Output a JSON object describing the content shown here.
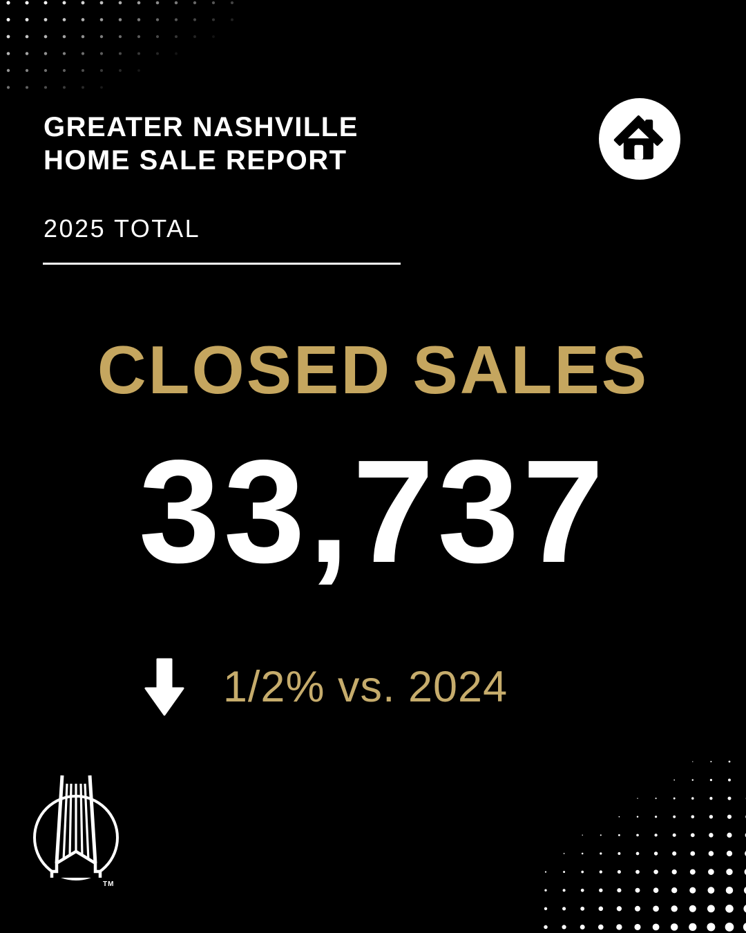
{
  "poster": {
    "background": "#000000"
  },
  "colors": {
    "gold": "#C5A65F",
    "gold-soft": "#C6AC6C",
    "white": "#FFFFFF",
    "icon-black": "#000000"
  },
  "header": {
    "title_line1": "GREATER NASHVILLE",
    "title_line2": "HOME SALE REPORT",
    "subtitle": "2025 TOTAL",
    "badge_icon": "home-icon"
  },
  "metric": {
    "label": "CLOSED SALES",
    "value": "33,737",
    "change": {
      "direction": "down",
      "icon": "arrow-down-icon",
      "text": "1/2% vs. 2024"
    }
  },
  "footer": {
    "logo": "brand-logo",
    "trademark": "TM"
  }
}
